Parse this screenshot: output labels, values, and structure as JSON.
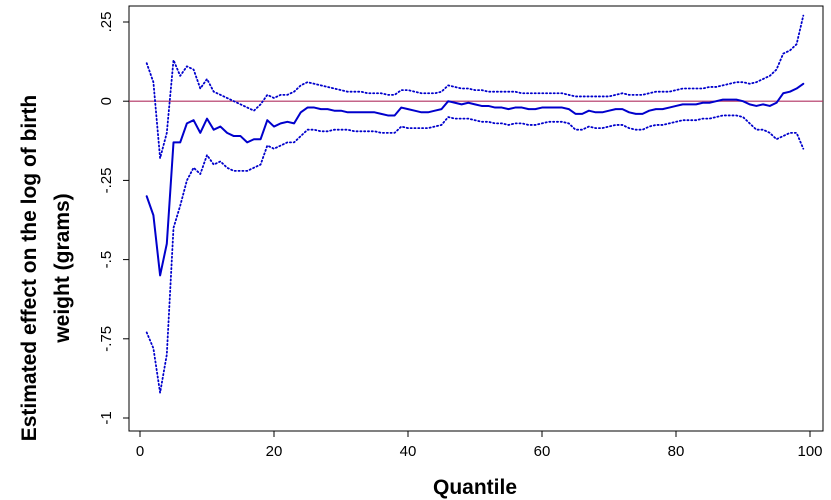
{
  "chart_data": {
    "type": "line",
    "title": "",
    "xlabel": "Quantile",
    "ylabel_lines": [
      "Estimated effect on the log of  birth",
      "weight (grams)"
    ],
    "xlim": [
      0,
      100
    ],
    "ylim": [
      -1.0,
      0.25
    ],
    "x_ticks": [
      {
        "value": 0,
        "label": "0"
      },
      {
        "value": 20,
        "label": "20"
      },
      {
        "value": 40,
        "label": "40"
      },
      {
        "value": 60,
        "label": "60"
      },
      {
        "value": 80,
        "label": "80"
      },
      {
        "value": 100,
        "label": "100"
      }
    ],
    "y_ticks": [
      {
        "value": 0.25,
        "label": ".25"
      },
      {
        "value": 0,
        "label": "0"
      },
      {
        "value": -0.25,
        "label": "-.25"
      },
      {
        "value": -0.5,
        "label": "-.5"
      },
      {
        "value": -0.75,
        "label": "-.75"
      },
      {
        "value": -1,
        "label": "-1"
      }
    ],
    "grid": false,
    "reference_line": {
      "y": 0,
      "color": "#b03060"
    },
    "colors": {
      "series": "#0000cc",
      "reference": "#b03060"
    },
    "x": [
      1,
      2,
      3,
      4,
      5,
      6,
      7,
      8,
      9,
      10,
      11,
      12,
      13,
      14,
      15,
      16,
      17,
      18,
      19,
      20,
      21,
      22,
      23,
      24,
      25,
      26,
      27,
      28,
      29,
      30,
      31,
      32,
      33,
      34,
      35,
      36,
      37,
      38,
      39,
      40,
      41,
      42,
      43,
      44,
      45,
      46,
      47,
      48,
      49,
      50,
      51,
      52,
      53,
      54,
      55,
      56,
      57,
      58,
      59,
      60,
      61,
      62,
      63,
      64,
      65,
      66,
      67,
      68,
      69,
      70,
      71,
      72,
      73,
      74,
      75,
      76,
      77,
      78,
      79,
      80,
      81,
      82,
      83,
      84,
      85,
      86,
      87,
      88,
      89,
      90,
      91,
      92,
      93,
      94,
      95,
      96,
      97,
      98,
      99
    ],
    "series": [
      {
        "style": "solid",
        "values": [
          -0.3,
          -0.36,
          -0.55,
          -0.45,
          -0.13,
          -0.13,
          -0.07,
          -0.06,
          -0.1,
          -0.055,
          -0.09,
          -0.08,
          -0.1,
          -0.11,
          -0.11,
          -0.13,
          -0.12,
          -0.12,
          -0.06,
          -0.08,
          -0.07,
          -0.065,
          -0.07,
          -0.035,
          -0.02,
          -0.02,
          -0.025,
          -0.025,
          -0.03,
          -0.03,
          -0.035,
          -0.035,
          -0.035,
          -0.035,
          -0.035,
          -0.04,
          -0.045,
          -0.045,
          -0.02,
          -0.025,
          -0.03,
          -0.035,
          -0.035,
          -0.03,
          -0.025,
          0.0,
          -0.005,
          -0.01,
          -0.005,
          -0.01,
          -0.015,
          -0.015,
          -0.02,
          -0.02,
          -0.025,
          -0.02,
          -0.02,
          -0.025,
          -0.025,
          -0.02,
          -0.02,
          -0.02,
          -0.02,
          -0.025,
          -0.04,
          -0.04,
          -0.03,
          -0.035,
          -0.035,
          -0.03,
          -0.025,
          -0.025,
          -0.035,
          -0.04,
          -0.04,
          -0.03,
          -0.025,
          -0.025,
          -0.02,
          -0.015,
          -0.01,
          -0.01,
          -0.01,
          -0.005,
          -0.005,
          0.0,
          0.005,
          0.005,
          0.005,
          0.0,
          -0.01,
          -0.015,
          -0.01,
          -0.015,
          -0.005,
          0.025,
          0.03,
          0.04,
          0.055
        ]
      },
      {
        "style": "dotted",
        "values": [
          0.12,
          0.06,
          -0.18,
          -0.1,
          0.13,
          0.08,
          0.11,
          0.1,
          0.04,
          0.07,
          0.03,
          0.02,
          0.01,
          0.0,
          -0.01,
          -0.02,
          -0.03,
          -0.01,
          0.02,
          0.01,
          0.02,
          0.02,
          0.03,
          0.05,
          0.06,
          0.055,
          0.05,
          0.045,
          0.04,
          0.035,
          0.03,
          0.03,
          0.03,
          0.025,
          0.025,
          0.025,
          0.02,
          0.02,
          0.035,
          0.035,
          0.03,
          0.025,
          0.025,
          0.025,
          0.03,
          0.05,
          0.045,
          0.04,
          0.04,
          0.035,
          0.035,
          0.03,
          0.03,
          0.03,
          0.03,
          0.03,
          0.025,
          0.025,
          0.025,
          0.025,
          0.025,
          0.025,
          0.025,
          0.02,
          0.015,
          0.015,
          0.015,
          0.015,
          0.015,
          0.015,
          0.02,
          0.025,
          0.02,
          0.02,
          0.02,
          0.025,
          0.03,
          0.03,
          0.03,
          0.035,
          0.04,
          0.04,
          0.04,
          0.04,
          0.045,
          0.045,
          0.05,
          0.055,
          0.06,
          0.06,
          0.055,
          0.06,
          0.07,
          0.08,
          0.1,
          0.15,
          0.16,
          0.18,
          0.27
        ]
      },
      {
        "style": "dotted",
        "values": [
          -0.73,
          -0.78,
          -0.92,
          -0.8,
          -0.4,
          -0.33,
          -0.25,
          -0.21,
          -0.23,
          -0.17,
          -0.2,
          -0.19,
          -0.21,
          -0.22,
          -0.22,
          -0.22,
          -0.21,
          -0.2,
          -0.14,
          -0.15,
          -0.14,
          -0.13,
          -0.13,
          -0.11,
          -0.09,
          -0.09,
          -0.095,
          -0.095,
          -0.09,
          -0.09,
          -0.09,
          -0.095,
          -0.095,
          -0.095,
          -0.095,
          -0.1,
          -0.1,
          -0.1,
          -0.08,
          -0.085,
          -0.085,
          -0.085,
          -0.085,
          -0.08,
          -0.075,
          -0.05,
          -0.055,
          -0.055,
          -0.055,
          -0.06,
          -0.065,
          -0.065,
          -0.07,
          -0.07,
          -0.075,
          -0.07,
          -0.07,
          -0.075,
          -0.075,
          -0.07,
          -0.065,
          -0.065,
          -0.065,
          -0.07,
          -0.09,
          -0.09,
          -0.08,
          -0.085,
          -0.085,
          -0.08,
          -0.075,
          -0.075,
          -0.085,
          -0.09,
          -0.09,
          -0.08,
          -0.075,
          -0.075,
          -0.07,
          -0.065,
          -0.06,
          -0.06,
          -0.06,
          -0.055,
          -0.055,
          -0.05,
          -0.045,
          -0.045,
          -0.045,
          -0.05,
          -0.07,
          -0.09,
          -0.09,
          -0.1,
          -0.12,
          -0.11,
          -0.1,
          -0.1,
          -0.15
        ]
      }
    ]
  }
}
